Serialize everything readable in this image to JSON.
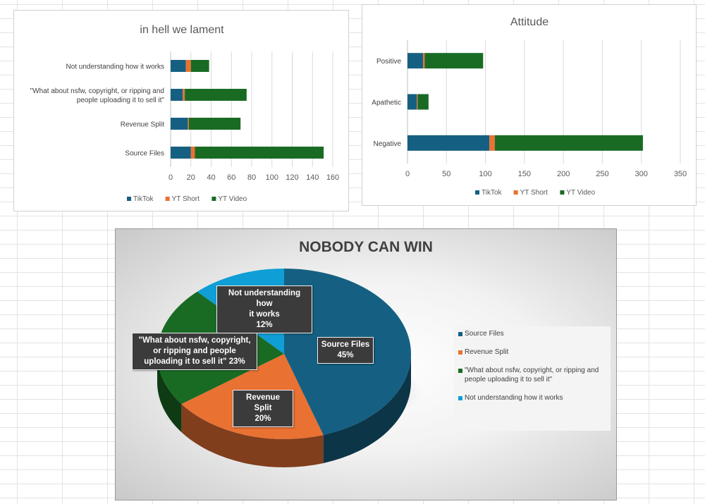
{
  "chart_data": [
    {
      "type": "bar",
      "orientation": "horizontal",
      "stacked": true,
      "title": "in hell we lament",
      "categories": [
        "Not understanding how it works",
        "\"What about nsfw, copyright, or ripping and people uploading it to sell it\"",
        "Revenue Split",
        "Source Files"
      ],
      "series": [
        {
          "name": "TikTok",
          "color": "#156082",
          "values": [
            15,
            12,
            17,
            20
          ]
        },
        {
          "name": "YT Short",
          "color": "#e97132",
          "values": [
            5,
            2,
            1,
            4
          ]
        },
        {
          "name": "YT Video",
          "color": "#196b24",
          "values": [
            18,
            61,
            51,
            127
          ]
        }
      ],
      "xlim": [
        0,
        160
      ],
      "xticks": [
        0,
        20,
        40,
        60,
        80,
        100,
        120,
        140,
        160
      ],
      "grid": true,
      "legend": "bottom"
    },
    {
      "type": "bar",
      "orientation": "horizontal",
      "stacked": true,
      "title": "Attitude",
      "categories": [
        "Positive",
        "Apathetic",
        "Negative"
      ],
      "series": [
        {
          "name": "TikTok",
          "color": "#156082",
          "values": [
            20,
            12,
            105
          ]
        },
        {
          "name": "YT Short",
          "color": "#e97132",
          "values": [
            2,
            1,
            7
          ]
        },
        {
          "name": "YT Video",
          "color": "#196b24",
          "values": [
            75,
            14,
            190
          ]
        }
      ],
      "xlim": [
        0,
        350
      ],
      "xticks": [
        0,
        50,
        100,
        150,
        200,
        250,
        300,
        350
      ],
      "grid": true,
      "legend": "bottom"
    },
    {
      "type": "pie",
      "style": "3d",
      "title": "NOBODY CAN WIN",
      "slices": [
        {
          "label": "Source Files",
          "value": 45,
          "color": "#156082",
          "pct_label": "45%"
        },
        {
          "label": "Revenue Split",
          "value": 20,
          "color": "#e97132",
          "pct_label": "20%"
        },
        {
          "label": "\"What about nsfw, copyright, or ripping and people uploading it to sell it\"",
          "value": 23,
          "color": "#196b24",
          "pct_label": "23%"
        },
        {
          "label": "Not understanding how it works",
          "value": 12,
          "color": "#0f9ed5",
          "pct_label": "12%"
        }
      ],
      "callout_lines": {
        "source_files": [
          "Source Files",
          "45%"
        ],
        "revenue_split": [
          "Revenue Split",
          "20%"
        ],
        "nsfw": [
          "\"What about nsfw, copyright,",
          "or ripping and people",
          "uploading it to sell it\" 23%"
        ],
        "not_understanding": [
          "Not understanding how",
          "it works",
          "12%"
        ]
      },
      "legend": "right",
      "legend_lines": {
        "source_files": [
          "Source Files"
        ],
        "revenue_split": [
          "Revenue Split"
        ],
        "nsfw": [
          "\"What about nsfw, copyright, or ripping and",
          "people uploading it to sell it\""
        ],
        "not_understanding": [
          "Not understanding how it works"
        ]
      }
    }
  ]
}
